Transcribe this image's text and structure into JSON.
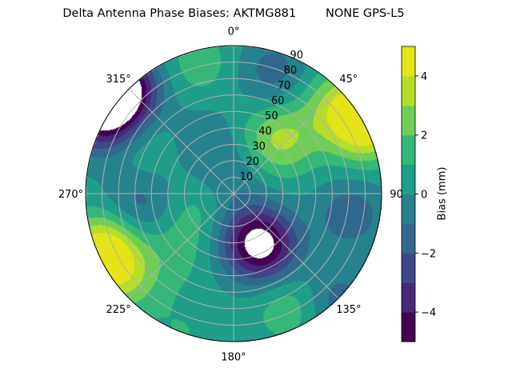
{
  "chart_data": {
    "type": "heatmap",
    "subtype": "polar-filled-contour",
    "title": "Delta Antenna Phase Biases: AKTMG881        NONE GPS-L5",
    "angular_axis": {
      "direction": "clockwise",
      "zero_location": "top",
      "tick_labels": [
        "0°",
        "45°",
        "90",
        "135°",
        "180°",
        "225°",
        "270°",
        "315°"
      ],
      "tick_values": [
        0,
        45,
        90,
        135,
        180,
        225,
        270,
        315
      ]
    },
    "radial_axis": {
      "range": [
        0,
        90
      ],
      "tick_values": [
        10,
        20,
        30,
        40,
        50,
        60,
        70,
        80,
        90
      ],
      "tick_labels": [
        "10",
        "20",
        "30",
        "40",
        "50",
        "60",
        "70",
        "80",
        "90"
      ]
    },
    "grid": true,
    "colorbar": {
      "label": "Bias (mm)",
      "range": [
        -5,
        5
      ],
      "levels": [
        -5,
        -4,
        -3,
        -2,
        -1,
        0,
        1,
        2,
        3,
        4,
        5
      ],
      "tick_values": [
        -4,
        -2,
        0,
        2,
        4
      ],
      "tick_labels": [
        "−4",
        "−2",
        "0",
        "2",
        "4"
      ],
      "colormap": "viridis",
      "colors": [
        "#440154",
        "#482878",
        "#3e4989",
        "#31688e",
        "#26828e",
        "#1f9e89",
        "#35b779",
        "#6ece58",
        "#b5de2b",
        "#e4e418"
      ],
      "position": "right"
    },
    "background_bias": 0.3,
    "bias_extrema": [
      {
        "azimuth": 62,
        "zenith": 90,
        "bias": 5.2
      },
      {
        "azimuth": 48,
        "zenith": 84,
        "bias": 2.5
      },
      {
        "azimuth": 42,
        "zenith": 46,
        "bias": 2.6
      },
      {
        "azimuth": 30,
        "zenith": 32,
        "bias": 1.5
      },
      {
        "azimuth": 152,
        "zenith": 37,
        "bias": -4.6
      },
      {
        "azimuth": 160,
        "zenith": 25,
        "bias": -1.5
      },
      {
        "azimuth": 247,
        "zenith": 86,
        "bias": 5.0
      },
      {
        "azimuth": 232,
        "zenith": 85,
        "bias": 2.5
      },
      {
        "azimuth": 312,
        "zenith": 95,
        "bias": -7.0
      },
      {
        "azimuth": 300,
        "zenith": 92,
        "bias": -4.0
      },
      {
        "azimuth": 345,
        "zenith": 82,
        "bias": 1.6
      },
      {
        "azimuth": 244,
        "zenith": 25,
        "bias": 1.4
      },
      {
        "azimuth": 225,
        "zenith": 50,
        "bias": 1.3
      },
      {
        "azimuth": 153,
        "zenith": 76,
        "bias": 2.0
      },
      {
        "azimuth": 263,
        "zenith": 58,
        "bias": -1.6
      },
      {
        "azimuth": 100,
        "zenith": 72,
        "bias": -1.6
      },
      {
        "azimuth": 18,
        "zenith": 78,
        "bias": -1.5
      },
      {
        "azimuth": 0,
        "zenith": 16,
        "bias": -1.2
      },
      {
        "azimuth": 298,
        "zenith": 64,
        "bias": 1.3
      },
      {
        "azimuth": 137,
        "zenith": 90,
        "bias": -1.6
      },
      {
        "azimuth": 200,
        "zenith": 90,
        "bias": 1.0
      },
      {
        "azimuth": 330,
        "zenith": 40,
        "bias": -0.6
      }
    ]
  }
}
